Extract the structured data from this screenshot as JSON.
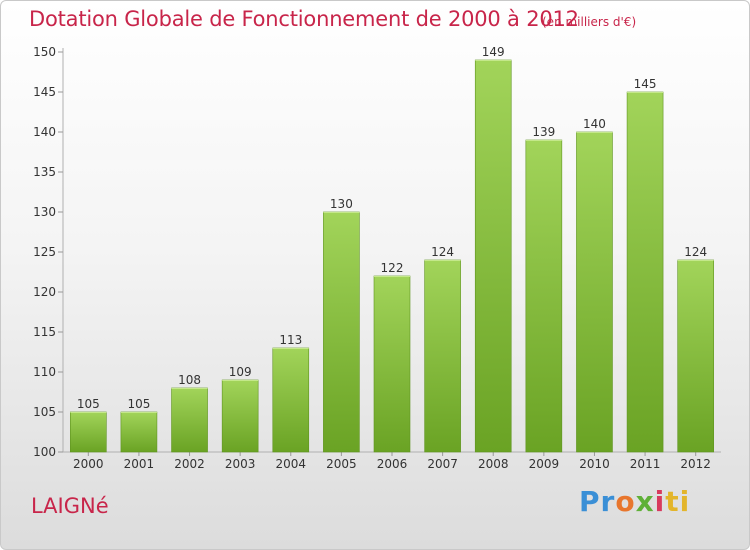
{
  "chart_data": {
    "type": "bar",
    "title": "Dotation Globale de Fonctionnement de 2000 à 2012",
    "unit_note": "(en milliers d'€)",
    "categories": [
      "2000",
      "2001",
      "2002",
      "2003",
      "2004",
      "2005",
      "2006",
      "2007",
      "2008",
      "2009",
      "2010",
      "2011",
      "2012"
    ],
    "values": [
      105,
      105,
      108,
      109,
      113,
      130,
      122,
      124,
      149,
      139,
      140,
      145,
      124
    ],
    "ylim": [
      100,
      150
    ],
    "yticks": [
      100,
      105,
      110,
      115,
      120,
      125,
      130,
      135,
      140,
      145,
      150
    ],
    "grid": false,
    "bar_color_top": "#a2d45a",
    "bar_color_bottom": "#6aa324"
  },
  "footer": {
    "town": "LAIGNé",
    "logo_parts": [
      "Pr",
      "o",
      "x",
      "i",
      "ti"
    ]
  },
  "colors": {
    "title": "#c8254a"
  }
}
